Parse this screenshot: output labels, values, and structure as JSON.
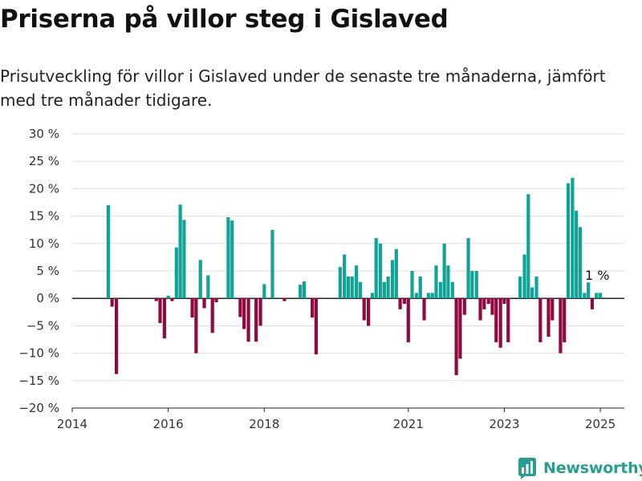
{
  "header": {
    "title": "Priserna på villor steg i Gislaved",
    "subtitle": "Prisutveckling för villor i Gislaved under de senaste tre månaderna, jämfört med tre månader tidigare."
  },
  "logo": {
    "text": "Newsworthy",
    "icon": "bar-chart-logo-icon"
  },
  "colors": {
    "positive": "#10a396",
    "negative": "#8e0a41",
    "logo": "#2a9d8f"
  },
  "chart_data": {
    "type": "bar",
    "title": "Priserna på villor steg i Gislaved",
    "subtitle": "Prisutveckling för villor i Gislaved under de senaste tre månaderna, jämfört med tre månader tidigare.",
    "xlabel": "",
    "ylabel": "",
    "x_ticks": [
      "2014",
      "2016",
      "2018",
      "2021",
      "2023",
      "2025"
    ],
    "x_tick_positions": [
      2014,
      2016,
      2018,
      2021,
      2023,
      2025
    ],
    "y_ticks": [
      30,
      25,
      20,
      15,
      10,
      5,
      0,
      -5,
      -10,
      -15,
      -20
    ],
    "y_tick_labels": [
      "30 %",
      "25 %",
      "20 %",
      "15 %",
      "10 %",
      "5 %",
      "0 %",
      "−5 %",
      "−10 %",
      "−15 %",
      "−20 %"
    ],
    "ylim": [
      -20,
      30
    ],
    "xlim": [
      2014.0,
      2025.5
    ],
    "grid": true,
    "end_label": "1 %",
    "series": [
      {
        "x": [
          2014.75,
          2014.83,
          2014.92,
          2015.75,
          2015.83,
          2015.92,
          2016.0,
          2016.08,
          2016.17,
          2016.25,
          2016.33,
          2016.5,
          2016.58,
          2016.67,
          2016.75,
          2016.83,
          2016.92,
          2017.0,
          2017.25,
          2017.33,
          2017.5,
          2017.58,
          2017.67,
          2017.83,
          2017.92,
          2018.0,
          2018.17,
          2018.42,
          2018.75,
          2018.83,
          2019.0,
          2019.08,
          2019.58,
          2019.67,
          2019.75,
          2019.83,
          2019.92,
          2020.0,
          2020.08,
          2020.17,
          2020.25,
          2020.33,
          2020.42,
          2020.5,
          2020.58,
          2020.67,
          2020.75,
          2020.83,
          2020.92,
          2021.0,
          2021.08,
          2021.17,
          2021.25,
          2021.33,
          2021.42,
          2021.5,
          2021.58,
          2021.67,
          2021.75,
          2021.83,
          2021.92,
          2022.0,
          2022.08,
          2022.17,
          2022.25,
          2022.33,
          2022.42,
          2022.5,
          2022.58,
          2022.67,
          2022.75,
          2022.83,
          2022.92,
          2023.0,
          2023.08,
          2023.33,
          2023.42,
          2023.5,
          2023.58,
          2023.67,
          2023.75,
          2023.92,
          2024.0,
          2024.17,
          2024.25,
          2024.33,
          2024.42,
          2024.5,
          2024.58,
          2024.67,
          2024.75,
          2024.83,
          2024.92,
          2025.0
        ],
        "values": [
          17,
          -1.5,
          -13.8,
          -0.5,
          -4.5,
          -7.3,
          0.5,
          -0.5,
          9.3,
          17.1,
          14.3,
          -3.5,
          -10,
          7,
          -1.8,
          4.2,
          -6.3,
          -0.7,
          14.8,
          14.2,
          -3.4,
          -5.6,
          -7.9,
          -7.9,
          -5,
          2.6,
          12.5,
          -0.5,
          2.5,
          3.1,
          -3.5,
          -10.2,
          5.7,
          8,
          4,
          4,
          6,
          3,
          -4,
          -5,
          1,
          11,
          10,
          3,
          4,
          7,
          9,
          -2,
          -1,
          -8,
          5,
          1,
          4,
          -4,
          1,
          1,
          6,
          3,
          10,
          6,
          3,
          -14,
          -11,
          -3,
          11,
          5,
          5,
          -4,
          -2,
          -1,
          -3,
          -8,
          -9,
          -1,
          -8,
          4,
          8,
          19,
          2,
          4,
          -8,
          -7,
          -4,
          -10,
          -8,
          21,
          22,
          16,
          13,
          1,
          2.9,
          -2,
          1,
          1
        ]
      }
    ]
  }
}
